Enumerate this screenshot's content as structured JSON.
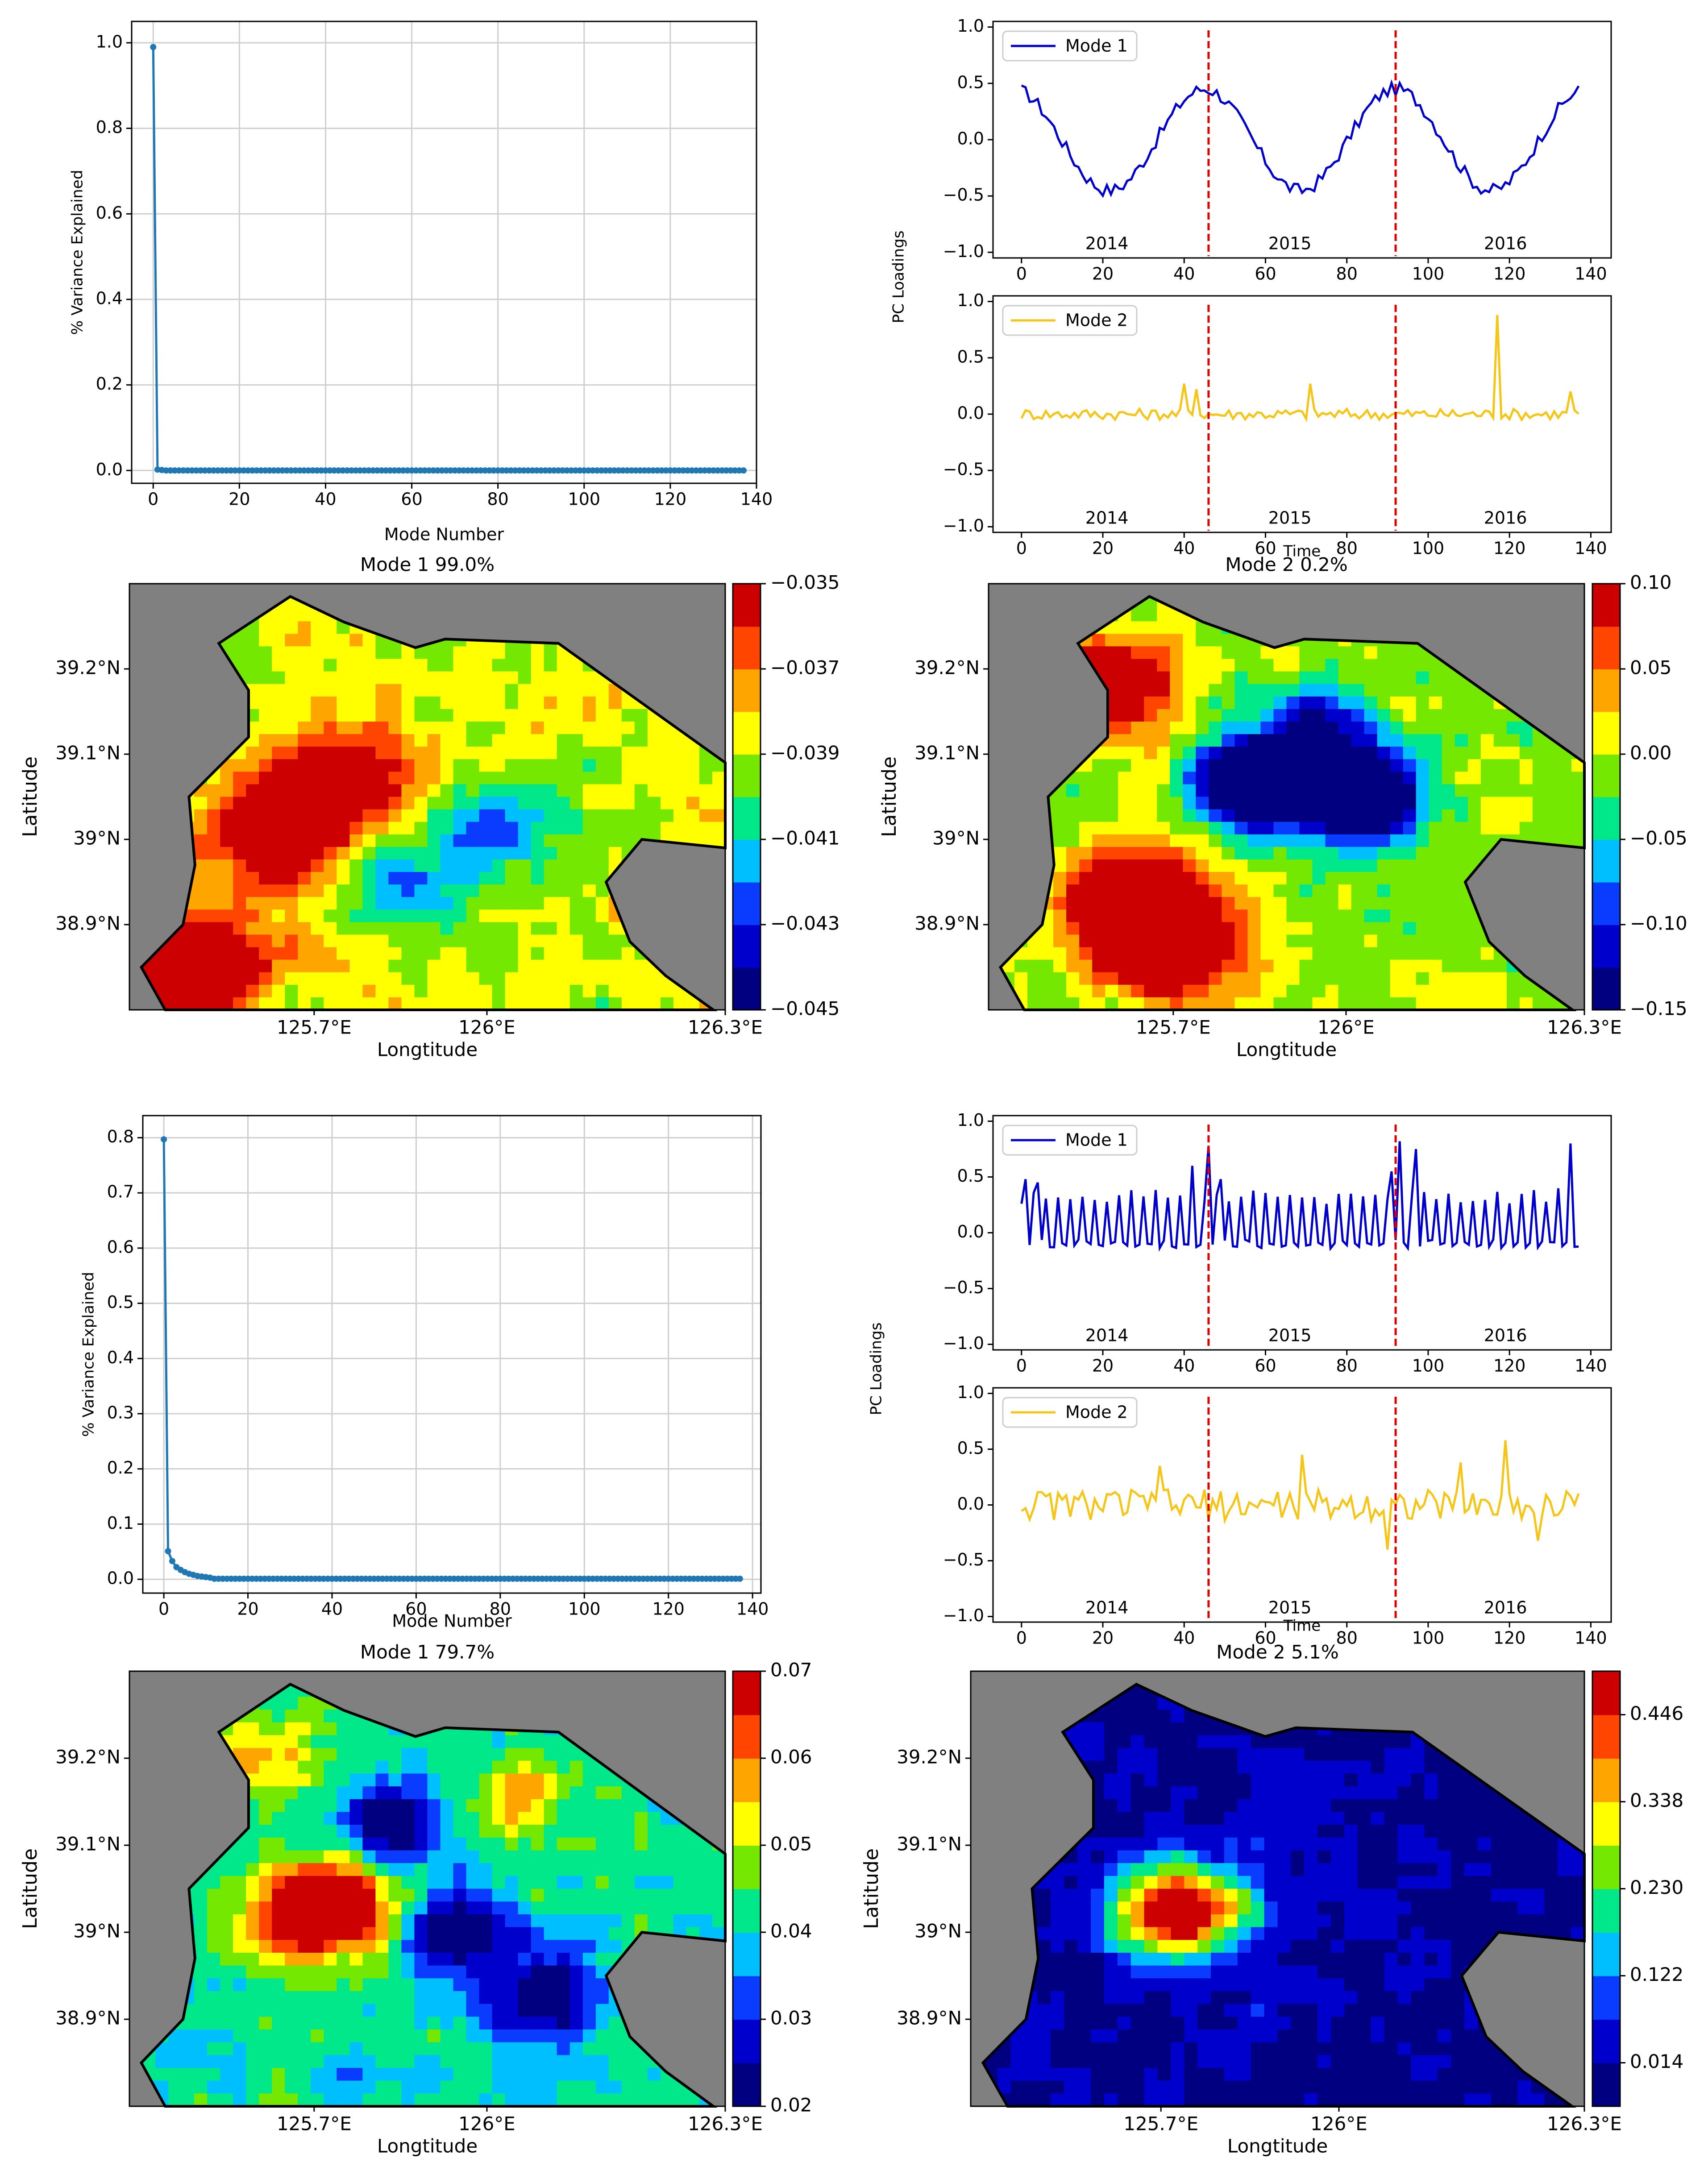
{
  "colors": {
    "scree_line": "#1f77b4",
    "mode1_line": "#0000cc",
    "mode2_line": "#f5c518",
    "divider": "#e00000",
    "land": "#808080",
    "grid": "#cfcfcf",
    "cmap": [
      "#000080",
      "#0000cd",
      "#0a3cff",
      "#00bfff",
      "#00e88a",
      "#74e800",
      "#ffff00",
      "#ffa500",
      "#ff4500",
      "#cc0000"
    ]
  },
  "chart_data": [
    {
      "type": "line",
      "id": "scree_top",
      "xlabel": "Mode Number",
      "ylabel": "% Variance Explained",
      "xlim": [
        -5,
        140
      ],
      "ylim": [
        -0.03,
        1.05
      ],
      "xticks": [
        0,
        20,
        40,
        60,
        80,
        100,
        120,
        140
      ],
      "xtick_labels": [
        "0",
        "20",
        "40",
        "60",
        "80",
        "100",
        "120",
        "140"
      ],
      "yticks": [
        0.0,
        0.2,
        0.4,
        0.6,
        0.8,
        1.0
      ],
      "ytick_labels": [
        "0.0",
        "0.2",
        "0.4",
        "0.6",
        "0.8",
        "1.0"
      ],
      "first_values": [
        0.99,
        0.002,
        0.001
      ],
      "n_modes": 138,
      "tail_value": 0.0,
      "grid": true
    },
    {
      "type": "line",
      "id": "pc_top",
      "ylabel": "PC Loadings",
      "xlabel": "Time",
      "xlim": [
        -7,
        145
      ],
      "ylim": [
        -1.05,
        1.05
      ],
      "xticks": [
        0,
        20,
        40,
        60,
        80,
        100,
        120,
        140
      ],
      "xtick_labels": [
        "0",
        "20",
        "40",
        "60",
        "80",
        "100",
        "120",
        "140"
      ],
      "yticks": [
        -1.0,
        -0.5,
        0.0,
        0.5,
        1.0
      ],
      "ytick_labels": [
        "−1.0",
        "−0.5",
        "0.0",
        "0.5",
        "1.0"
      ],
      "dividers": [
        46,
        92
      ],
      "year_labels": [
        "2014",
        "2015",
        "2016"
      ],
      "year_positions": [
        21,
        66,
        119
      ],
      "panels": [
        {
          "name": "Mode 1",
          "kind": "seasonal",
          "amp": 0.45,
          "noise": 0.06,
          "spikes": []
        },
        {
          "name": "Mode 2",
          "kind": "noise",
          "amp": 0.0,
          "noise": 0.05,
          "spikes": [
            [
              40,
              0.27
            ],
            [
              43,
              0.22
            ],
            [
              71,
              0.27
            ],
            [
              117,
              0.88
            ],
            [
              135,
              0.2
            ]
          ]
        }
      ]
    },
    {
      "type": "heatmap",
      "id": "map_top_left",
      "title": "Mode 1    99.0%",
      "xlabel": "Longtitude",
      "ylabel": "Latitude",
      "xtick_labels": [
        "125.7°E",
        "126°E",
        "126.3°E"
      ],
      "ytick_labels": [
        "39.2°N",
        "39.1°N",
        "39°N",
        "38.9°N"
      ],
      "colorbar_labels": [
        "−0.035",
        "−0.037",
        "−0.039",
        "−0.041",
        "−0.043",
        "−0.045"
      ],
      "hot_spots": [
        [
          0.25,
          0.6,
          0.6
        ],
        [
          0.35,
          0.45,
          0.55
        ],
        [
          0.1,
          0.9,
          0.9
        ]
      ],
      "cold_spots": [
        [
          0.45,
          0.7,
          0.35
        ],
        [
          0.62,
          0.58,
          0.35
        ]
      ],
      "base_level": 0.62
    },
    {
      "type": "heatmap",
      "id": "map_top_right",
      "title": "Mode 2    0.2%",
      "xlabel": "Longtitude",
      "ylabel": "Latitude",
      "xtick_labels": [
        "125.7°E",
        "126°E",
        "126.3°E"
      ],
      "ytick_labels": [
        "39.2°N",
        "39.1°N",
        "39°N",
        "38.9°N"
      ],
      "colorbar_labels": [
        "0.10",
        "0.05",
        "0.00",
        "−0.05",
        "−0.10",
        "−0.15"
      ],
      "hot_spots": [
        [
          0.3,
          0.85,
          0.8
        ],
        [
          0.2,
          0.25,
          0.7
        ],
        [
          0.25,
          0.75,
          0.85
        ]
      ],
      "cold_spots": [
        [
          0.45,
          0.47,
          0.95
        ],
        [
          0.62,
          0.5,
          1.0
        ],
        [
          0.55,
          0.35,
          0.5
        ]
      ],
      "base_level": 0.58
    },
    {
      "type": "line",
      "id": "scree_bottom",
      "xlabel": "Mode Number",
      "ylabel": "% Variance Explained",
      "xlim": [
        -5,
        142
      ],
      "ylim": [
        -0.025,
        0.84
      ],
      "xticks": [
        0,
        20,
        40,
        60,
        80,
        100,
        120,
        140
      ],
      "xtick_labels": [
        "0",
        "20",
        "40",
        "60",
        "80",
        "100",
        "120",
        "140"
      ],
      "yticks": [
        0.0,
        0.1,
        0.2,
        0.3,
        0.4,
        0.5,
        0.6,
        0.7,
        0.8
      ],
      "ytick_labels": [
        "0.0",
        "0.1",
        "0.2",
        "0.3",
        "0.4",
        "0.5",
        "0.6",
        "0.7",
        "0.8"
      ],
      "first_values": [
        0.797,
        0.051,
        0.033,
        0.022,
        0.017,
        0.013,
        0.01,
        0.008,
        0.006,
        0.005,
        0.004,
        0.003
      ],
      "n_modes": 138,
      "tail_value": 0.001,
      "grid": true
    },
    {
      "type": "line",
      "id": "pc_bottom",
      "ylabel": "PC Loadings",
      "xlabel": "Time",
      "xlim": [
        -7,
        145
      ],
      "ylim": [
        -1.05,
        1.05
      ],
      "xticks": [
        0,
        20,
        40,
        60,
        80,
        100,
        120,
        140
      ],
      "xtick_labels": [
        "0",
        "20",
        "40",
        "60",
        "80",
        "100",
        "120",
        "140"
      ],
      "yticks": [
        -1.0,
        -0.5,
        0.0,
        0.5,
        1.0
      ],
      "ytick_labels": [
        "−1.0",
        "−0.5",
        "0.0",
        "0.5",
        "1.0"
      ],
      "dividers": [
        46,
        92
      ],
      "year_labels": [
        "2014",
        "2015",
        "2016"
      ],
      "year_positions": [
        21,
        66,
        119
      ],
      "panels": [
        {
          "name": "Mode 1",
          "kind": "spiky",
          "amp": 0.0,
          "noise": 0.05,
          "spikes": [
            [
              1,
              0.48
            ],
            [
              4,
              0.45
            ],
            [
              42,
              0.6
            ],
            [
              46,
              0.78
            ],
            [
              49,
              0.48
            ],
            [
              91,
              0.55
            ],
            [
              93,
              0.82
            ],
            [
              97,
              0.75
            ],
            [
              135,
              0.8
            ]
          ]
        },
        {
          "name": "Mode 2",
          "kind": "noise",
          "amp": 0.0,
          "noise": 0.14,
          "spikes": [
            [
              34,
              0.35
            ],
            [
              69,
              0.45
            ],
            [
              90,
              -0.4
            ],
            [
              108,
              0.38
            ],
            [
              119,
              0.58
            ],
            [
              127,
              -0.32
            ]
          ]
        }
      ]
    },
    {
      "type": "heatmap",
      "id": "map_bottom_left",
      "title": "Mode 1    79.7%",
      "xlabel": "Longtitude",
      "ylabel": "Latitude",
      "xtick_labels": [
        "125.7°E",
        "126°E",
        "126.3°E"
      ],
      "ytick_labels": [
        "39.2°N",
        "39.1°N",
        "39°N",
        "38.9°N"
      ],
      "colorbar_labels": [
        "0.07",
        "0.06",
        "0.05",
        "0.04",
        "0.03",
        "0.02"
      ],
      "hot_spots": [
        [
          0.33,
          0.55,
          0.95
        ],
        [
          0.2,
          0.2,
          0.35
        ],
        [
          0.65,
          0.3,
          0.3
        ]
      ],
      "cold_spots": [
        [
          0.55,
          0.6,
          0.45
        ],
        [
          0.7,
          0.75,
          0.45
        ],
        [
          0.45,
          0.35,
          0.4
        ]
      ],
      "base_level": 0.42
    },
    {
      "type": "heatmap",
      "id": "map_bottom_right",
      "title": "Mode 2    5.1%",
      "xlabel": "Longtitude",
      "ylabel": "Latitude",
      "xtick_labels": [
        "125.7°E",
        "126°E",
        "126.3°E"
      ],
      "ytick_labels": [
        "39.2°N",
        "39.1°N",
        "39°N",
        "38.9°N"
      ],
      "colorbar_labels": [
        "0.446",
        "0.338",
        "0.230",
        "0.122",
        "0.014"
      ],
      "hot_spots": [
        [
          0.34,
          0.55,
          1.0
        ]
      ],
      "cold_spots": [],
      "base_level": 0.08
    }
  ]
}
